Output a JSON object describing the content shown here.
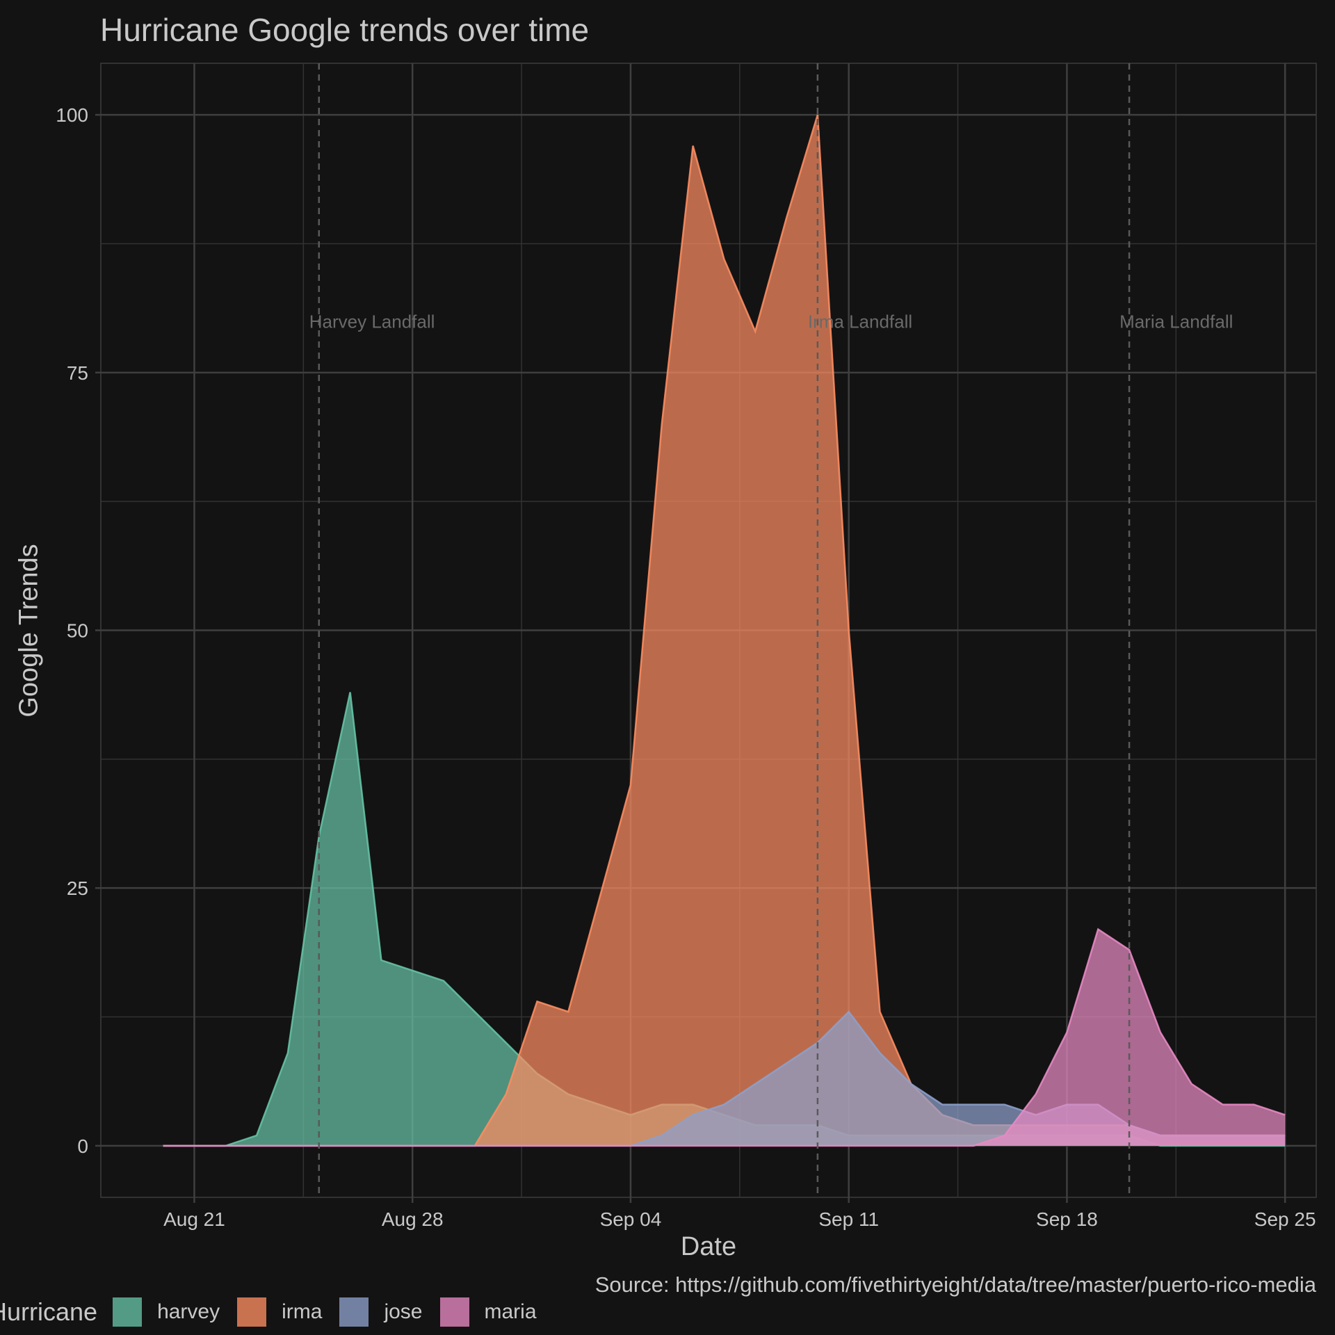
{
  "chart_data": {
    "type": "area",
    "title": "Hurricane Google trends over time",
    "xlabel": "Date",
    "ylabel": "Google Trends",
    "caption": "Source: https://github.com/fivethirtyeight/data/tree/master/puerto-rico-media",
    "legend_title": "Hurricane",
    "legend_position": "bottom",
    "grid": true,
    "x_ticks": [
      "2017-08-21",
      "2017-08-28",
      "2017-09-04",
      "2017-09-11",
      "2017-09-18",
      "2017-09-25"
    ],
    "x_tick_labels": [
      "Aug 21",
      "Aug 28",
      "Sep 04",
      "Sep 11",
      "Sep 18",
      "Sep 25"
    ],
    "xlim": [
      "2017-08-18",
      "2017-09-26"
    ],
    "y_ticks": [
      0,
      25,
      50,
      75,
      100
    ],
    "ylim": [
      -5,
      105
    ],
    "x": [
      "2017-08-20",
      "2017-08-21",
      "2017-08-22",
      "2017-08-23",
      "2017-08-24",
      "2017-08-25",
      "2017-08-26",
      "2017-08-27",
      "2017-08-28",
      "2017-08-29",
      "2017-08-30",
      "2017-08-31",
      "2017-09-01",
      "2017-09-02",
      "2017-09-03",
      "2017-09-04",
      "2017-09-05",
      "2017-09-06",
      "2017-09-07",
      "2017-09-08",
      "2017-09-09",
      "2017-09-10",
      "2017-09-11",
      "2017-09-12",
      "2017-09-13",
      "2017-09-14",
      "2017-09-15",
      "2017-09-16",
      "2017-09-17",
      "2017-09-18",
      "2017-09-19",
      "2017-09-20",
      "2017-09-21",
      "2017-09-22",
      "2017-09-23",
      "2017-09-24",
      "2017-09-25"
    ],
    "series": [
      {
        "name": "harvey",
        "color": "#66c2a5",
        "values": [
          0,
          0,
          0,
          1,
          9,
          30,
          44,
          18,
          17,
          16,
          13,
          10,
          7,
          5,
          4,
          3,
          4,
          4,
          3,
          2,
          2,
          2,
          1,
          1,
          1,
          1,
          1,
          1,
          1,
          1,
          1,
          1,
          0,
          0,
          0,
          0,
          0
        ]
      },
      {
        "name": "irma",
        "color": "#fc8d62",
        "values": [
          0,
          0,
          0,
          0,
          0,
          0,
          0,
          0,
          0,
          0,
          0,
          5,
          14,
          13,
          24,
          35,
          70,
          97,
          86,
          79,
          90,
          100,
          50,
          13,
          6,
          3,
          2,
          2,
          2,
          2,
          2,
          2,
          1,
          1,
          1,
          1,
          1
        ]
      },
      {
        "name": "jose",
        "color": "#8da0cb",
        "values": [
          0,
          0,
          0,
          0,
          0,
          0,
          0,
          0,
          0,
          0,
          0,
          0,
          0,
          0,
          0,
          0,
          1,
          3,
          4,
          6,
          8,
          10,
          13,
          9,
          6,
          4,
          4,
          4,
          3,
          4,
          4,
          2,
          1,
          1,
          1,
          1,
          1
        ]
      },
      {
        "name": "maria",
        "color": "#e78ac3",
        "values": [
          0,
          0,
          0,
          0,
          0,
          0,
          0,
          0,
          0,
          0,
          0,
          0,
          0,
          0,
          0,
          0,
          0,
          0,
          0,
          0,
          0,
          0,
          0,
          0,
          0,
          0,
          0,
          1,
          5,
          11,
          21,
          19,
          11,
          6,
          4,
          4,
          3
        ]
      }
    ],
    "annotations": [
      {
        "label": "Harvey Landfall",
        "x": "2017-08-25",
        "y": 80
      },
      {
        "label": "Irma Landfall",
        "x": "2017-09-10",
        "y": 80
      },
      {
        "label": "Maria Landfall",
        "x": "2017-09-20",
        "y": 80
      }
    ]
  }
}
